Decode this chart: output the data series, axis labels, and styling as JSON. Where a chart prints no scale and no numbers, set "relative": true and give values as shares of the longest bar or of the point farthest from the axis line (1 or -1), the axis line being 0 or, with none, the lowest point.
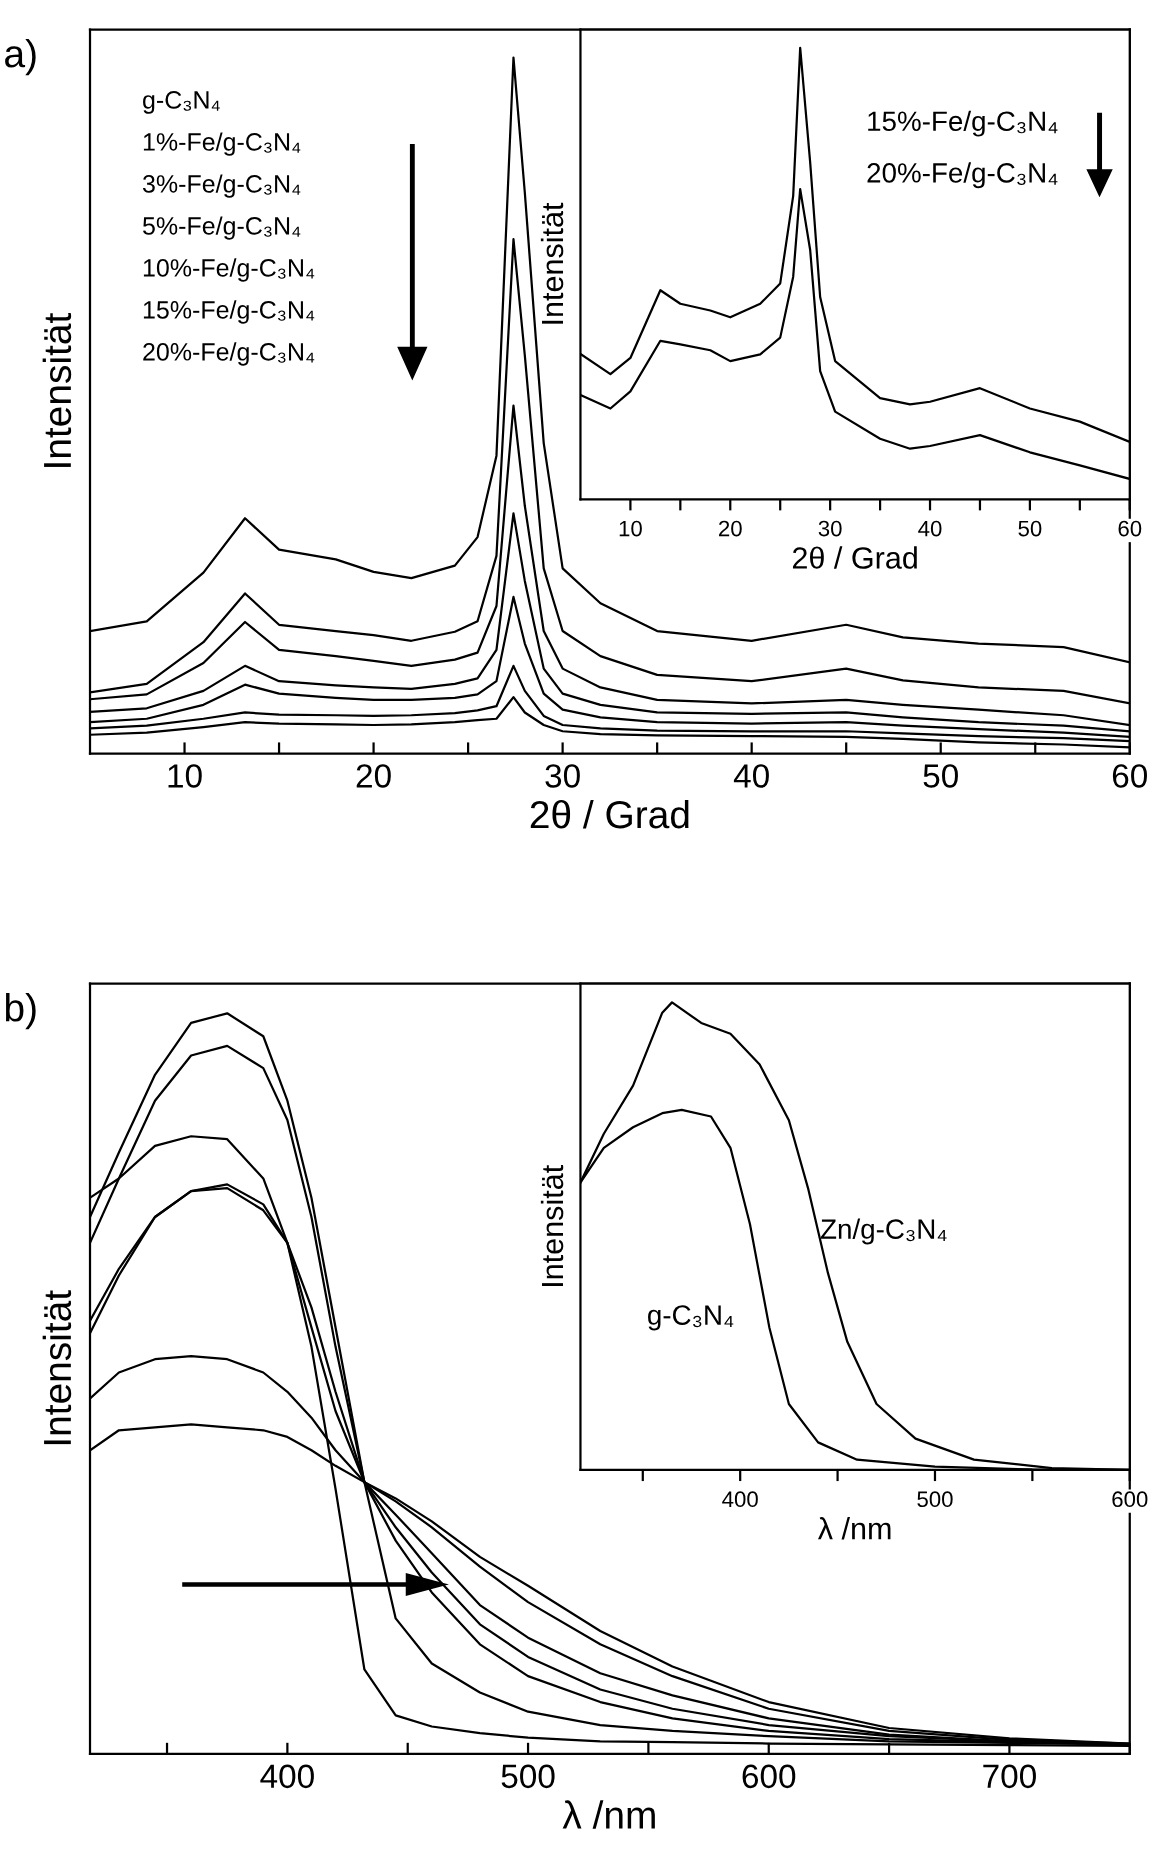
{
  "chart_data": [
    {
      "type": "line",
      "title": "a)",
      "relative": true,
      "xlabel": "2θ / Grad",
      "ylabel": "Intensität",
      "xlim": [
        5,
        60
      ],
      "xticks": [
        10,
        {
          "value": 15,
          "label": null
        },
        20,
        {
          "value": 25,
          "label": null
        },
        30,
        {
          "value": 35,
          "label": null
        },
        40,
        {
          "value": 45,
          "label": null
        },
        50,
        {
          "value": 55,
          "label": null
        },
        60
      ],
      "annotations": [
        "g-C₃N₄",
        "1%-Fe/g-C₃N₄",
        "3%-Fe/g-C₃N₄",
        "5%-Fe/g-C₃N₄",
        "10%-Fe/g-C₃N₄",
        "15%-Fe/g-C₃N₄",
        "20%-Fe/g-C₃N₄"
      ],
      "x": [
        5,
        8,
        11,
        13.2,
        15,
        18,
        20,
        22,
        24.3,
        25.5,
        26.5,
        27.4,
        28,
        29,
        30,
        32,
        35,
        40,
        45,
        48,
        52,
        56.5,
        60
      ],
      "series": [
        {
          "color": "#000000",
          "values": [
            0.176,
            0.19,
            0.26,
            0.338,
            0.293,
            0.279,
            0.261,
            0.252,
            0.27,
            0.311,
            0.428,
            1.0,
            0.806,
            0.446,
            0.266,
            0.216,
            0.176,
            0.162,
            0.185,
            0.167,
            0.158,
            0.153,
            0.131
          ]
        },
        {
          "color": "#000000",
          "values": [
            0.088,
            0.1,
            0.16,
            0.23,
            0.185,
            0.176,
            0.17,
            0.162,
            0.175,
            0.19,
            0.284,
            0.739,
            0.572,
            0.266,
            0.176,
            0.14,
            0.113,
            0.104,
            0.122,
            0.105,
            0.095,
            0.09,
            0.072
          ]
        },
        {
          "color": "#000000",
          "values": [
            0.078,
            0.085,
            0.13,
            0.189,
            0.149,
            0.14,
            0.133,
            0.126,
            0.135,
            0.145,
            0.212,
            0.5,
            0.356,
            0.176,
            0.122,
            0.095,
            0.077,
            0.072,
            0.077,
            0.07,
            0.063,
            0.055,
            0.041
          ]
        },
        {
          "color": "#000000",
          "values": [
            0.06,
            0.065,
            0.09,
            0.126,
            0.104,
            0.098,
            0.095,
            0.093,
            0.1,
            0.108,
            0.149,
            0.345,
            0.248,
            0.122,
            0.086,
            0.07,
            0.059,
            0.057,
            0.059,
            0.052,
            0.045,
            0.04,
            0.032
          ]
        },
        {
          "color": "#000000",
          "values": [
            0.045,
            0.05,
            0.07,
            0.099,
            0.086,
            0.08,
            0.077,
            0.077,
            0.08,
            0.085,
            0.104,
            0.225,
            0.158,
            0.086,
            0.063,
            0.052,
            0.045,
            0.043,
            0.045,
            0.04,
            0.035,
            0.03,
            0.024
          ]
        },
        {
          "color": "#000000",
          "values": [
            0.036,
            0.04,
            0.05,
            0.059,
            0.056,
            0.055,
            0.054,
            0.055,
            0.058,
            0.062,
            0.068,
            0.126,
            0.09,
            0.054,
            0.041,
            0.036,
            0.033,
            0.032,
            0.032,
            0.029,
            0.025,
            0.022,
            0.018
          ]
        },
        {
          "color": "#000000",
          "values": [
            0.027,
            0.03,
            0.038,
            0.045,
            0.043,
            0.042,
            0.041,
            0.042,
            0.045,
            0.048,
            0.05,
            0.081,
            0.059,
            0.041,
            0.032,
            0.028,
            0.026,
            0.025,
            0.024,
            0.021,
            0.016,
            0.013,
            0.009
          ]
        }
      ]
    },
    {
      "type": "line",
      "relative": true,
      "xlabel": "2θ / Grad",
      "ylabel": "Intensität",
      "xlim": [
        5,
        60
      ],
      "xticks": [
        10,
        {
          "value": 15,
          "label": null
        },
        20,
        {
          "value": 25,
          "label": null
        },
        30,
        {
          "value": 35,
          "label": null
        },
        40,
        {
          "value": 45,
          "label": null
        },
        50,
        {
          "value": 55,
          "label": null
        },
        60
      ],
      "annotations": [
        "15%-Fe/g-C₃N₄",
        "20%-Fe/g-C₃N₄"
      ],
      "x": [
        5,
        8,
        10,
        13,
        15,
        18,
        20,
        23,
        25,
        26.3,
        27,
        28,
        29,
        30.5,
        35,
        38,
        40,
        45,
        50,
        55,
        60
      ],
      "series": [
        {
          "color": "#000000",
          "values": [
            0.322,
            0.277,
            0.313,
            0.463,
            0.433,
            0.418,
            0.403,
            0.433,
            0.478,
            0.672,
            1.0,
            0.746,
            0.448,
            0.306,
            0.224,
            0.21,
            0.216,
            0.246,
            0.201,
            0.172,
            0.127
          ]
        },
        {
          "color": "#000000",
          "values": [
            0.231,
            0.201,
            0.239,
            0.351,
            0.343,
            0.33,
            0.306,
            0.321,
            0.358,
            0.493,
            0.687,
            0.552,
            0.284,
            0.194,
            0.134,
            0.112,
            0.118,
            0.142,
            0.104,
            0.075,
            0.045
          ]
        }
      ]
    },
    {
      "type": "line",
      "title": "b)",
      "relative": true,
      "xlabel": "λ /nm",
      "ylabel": "Intensität",
      "xlim": [
        318,
        750
      ],
      "xticks": [
        {
          "value": 350,
          "label": null
        },
        400,
        {
          "value": 450,
          "label": null
        },
        500,
        {
          "value": 550,
          "label": null
        },
        600,
        {
          "value": 650,
          "label": null
        },
        700,
        {
          "value": 750,
          "label": null
        }
      ],
      "x": [
        318,
        330,
        345,
        360,
        375,
        390,
        400,
        410,
        420,
        432,
        445,
        460,
        480,
        500,
        530,
        560,
        600,
        650,
        700,
        750
      ],
      "series": [
        {
          "color": "#000000",
          "values": [
            0.585,
            0.655,
            0.725,
            0.76,
            0.769,
            0.742,
            0.69,
            0.55,
            0.358,
            0.114,
            0.052,
            0.037,
            0.028,
            0.022,
            0.017,
            0.016,
            0.014,
            0.013,
            0.012,
            0.011
          ]
        },
        {
          "color": "#000000",
          "values": [
            0.751,
            0.777,
            0.821,
            0.834,
            0.83,
            0.777,
            0.69,
            0.576,
            0.463,
            0.367,
            0.183,
            0.122,
            0.083,
            0.057,
            0.039,
            0.031,
            0.024,
            0.017,
            0.015,
            0.013
          ]
        },
        {
          "color": "#000000",
          "values": [
            0.725,
            0.812,
            0.917,
            0.987,
            1.0,
            0.969,
            0.882,
            0.751,
            0.576,
            0.367,
            0.288,
            0.218,
            0.148,
            0.105,
            0.07,
            0.048,
            0.031,
            0.02,
            0.016,
            0.013
          ]
        },
        {
          "color": "#000000",
          "values": [
            0.69,
            0.777,
            0.882,
            0.943,
            0.956,
            0.926,
            0.856,
            0.725,
            0.55,
            0.367,
            0.306,
            0.245,
            0.175,
            0.131,
            0.087,
            0.061,
            0.039,
            0.024,
            0.017,
            0.013
          ]
        },
        {
          "color": "#000000",
          "values": [
            0.568,
            0.646,
            0.725,
            0.76,
            0.764,
            0.734,
            0.69,
            0.603,
            0.489,
            0.367,
            0.323,
            0.271,
            0.201,
            0.157,
            0.109,
            0.079,
            0.048,
            0.026,
            0.017,
            0.013
          ]
        },
        {
          "color": "#000000",
          "values": [
            0.48,
            0.515,
            0.533,
            0.537,
            0.533,
            0.515,
            0.489,
            0.454,
            0.41,
            0.367,
            0.341,
            0.306,
            0.253,
            0.205,
            0.148,
            0.105,
            0.061,
            0.031,
            0.019,
            0.014
          ]
        },
        {
          "color": "#000000",
          "values": [
            0.41,
            0.437,
            0.441,
            0.445,
            0.441,
            0.437,
            0.428,
            0.41,
            0.389,
            0.367,
            0.345,
            0.314,
            0.266,
            0.227,
            0.166,
            0.118,
            0.07,
            0.035,
            0.021,
            0.014
          ]
        }
      ]
    },
    {
      "type": "line",
      "relative": true,
      "xlabel": "λ /nm",
      "ylabel": "Intensität",
      "xlim": [
        318,
        600
      ],
      "xticks": [
        {
          "value": 350,
          "label": null
        },
        400,
        {
          "value": 450,
          "label": null
        },
        500,
        {
          "value": 550,
          "label": null
        },
        600
      ],
      "series": [
        {
          "name": "g-C₃N₄",
          "color": "#000000",
          "x": [
            318,
            330,
            345,
            360,
            370,
            385,
            395,
            405,
            415,
            425,
            440,
            460,
            500,
            550,
            600
          ],
          "values": [
            0.615,
            0.689,
            0.733,
            0.763,
            0.77,
            0.756,
            0.689,
            0.526,
            0.304,
            0.141,
            0.059,
            0.022,
            0.007,
            0.001,
            0
          ]
        },
        {
          "name": "Zn/g-C₃N₄",
          "color": "#000000",
          "x": [
            318,
            330,
            345,
            360,
            365,
            380,
            395,
            410,
            425,
            435,
            445,
            455,
            470,
            490,
            520,
            560,
            600
          ],
          "values": [
            0.615,
            0.719,
            0.822,
            0.978,
            1.0,
            0.956,
            0.933,
            0.867,
            0.748,
            0.6,
            0.422,
            0.274,
            0.141,
            0.067,
            0.022,
            0.004,
            0
          ]
        }
      ]
    }
  ]
}
